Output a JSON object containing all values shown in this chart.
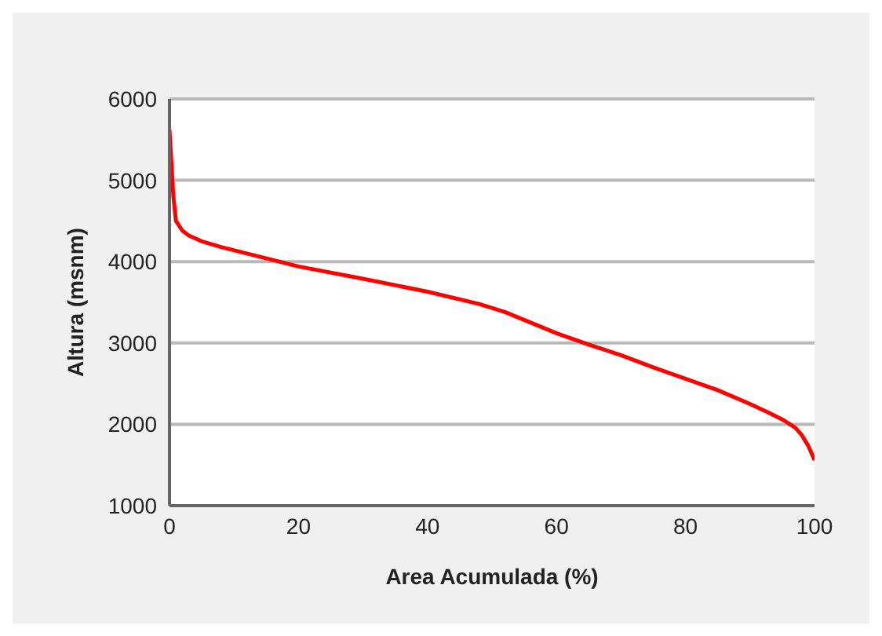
{
  "chart_data": {
    "type": "line",
    "xlabel": "Area Acumulada  (%)",
    "ylabel": "Altura (msnm)",
    "x": [
      0,
      0.3,
      0.6,
      1,
      2,
      3,
      5,
      8,
      12,
      17,
      20,
      30,
      40,
      48,
      52,
      56,
      60,
      65,
      70,
      75,
      80,
      85,
      90,
      93,
      95,
      97,
      98,
      99,
      100
    ],
    "series": [
      {
        "color": "#ff0000",
        "values": [
          5620,
          5200,
          4800,
          4500,
          4380,
          4320,
          4250,
          4180,
          4100,
          4000,
          3940,
          3790,
          3630,
          3480,
          3380,
          3250,
          3120,
          2980,
          2850,
          2700,
          2560,
          2420,
          2250,
          2140,
          2060,
          1960,
          1870,
          1740,
          1560
        ]
      }
    ],
    "xlim": [
      0,
      100
    ],
    "xticks": [
      0,
      20,
      40,
      60,
      80,
      100
    ],
    "ylim": [
      1000,
      6000
    ],
    "yticks": [
      1000,
      2000,
      3000,
      4000,
      5000,
      6000
    ],
    "grid": "y",
    "marker": "none",
    "line_style": "solid"
  }
}
